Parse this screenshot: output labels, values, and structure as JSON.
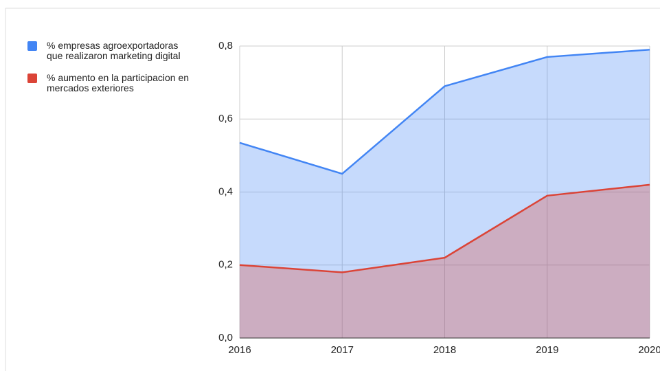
{
  "chart_data": {
    "type": "area",
    "categories": [
      "2016",
      "2017",
      "2018",
      "2019",
      "2020"
    ],
    "series": [
      {
        "name": "% empresas agroexportadoras que realizaron marketing digital",
        "color": "#4285f4",
        "values": [
          0.535,
          0.45,
          0.69,
          0.77,
          0.79
        ]
      },
      {
        "name": "% aumento en la participacion en mercados exteriores",
        "color": "#db4437",
        "values": [
          0.2,
          0.18,
          0.22,
          0.39,
          0.42
        ]
      }
    ],
    "ylim": [
      0,
      0.8
    ],
    "yticks": [
      {
        "value": 0,
        "label": "0,0"
      },
      {
        "value": 0.2,
        "label": "0,2"
      },
      {
        "value": 0.4,
        "label": "0,4"
      },
      {
        "value": 0.6,
        "label": "0,6"
      },
      {
        "value": 0.8,
        "label": "0,8"
      }
    ],
    "grid": true,
    "legend": "left"
  }
}
